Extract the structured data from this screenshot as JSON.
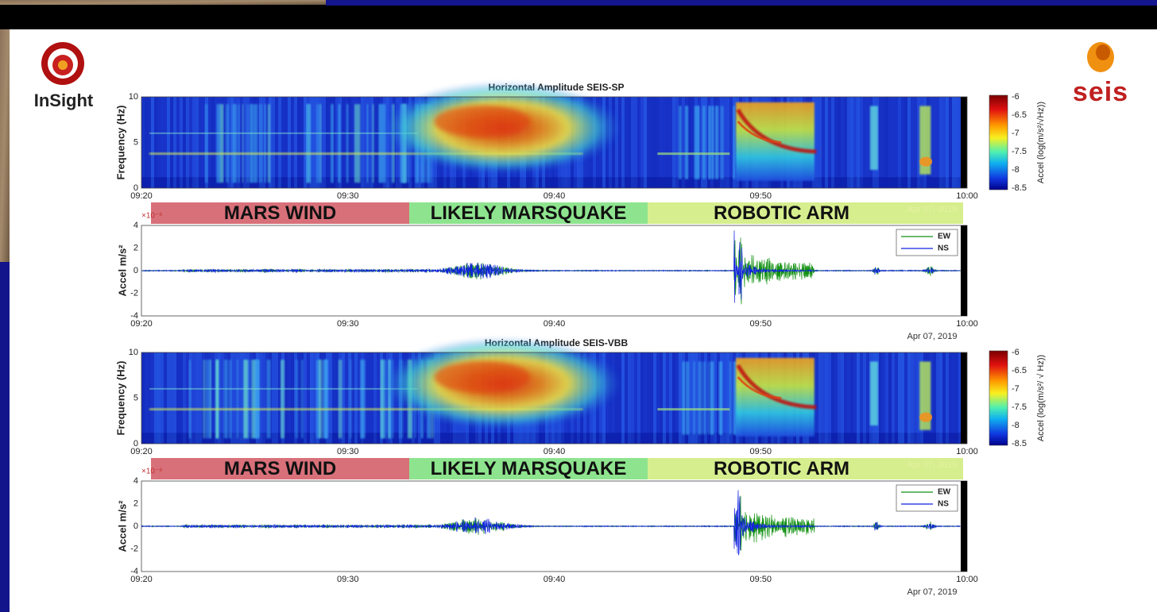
{
  "logos": {
    "left": "InSight",
    "right": "seis"
  },
  "panels": [
    {
      "spectrogram": {
        "title": "Horizontal Amplitude SEIS-SP",
        "ylabel": "Frequency (Hz)",
        "yticks": [
          "0",
          "5",
          "10"
        ],
        "xticks": [
          "09:20",
          "09:30",
          "09:40",
          "09:50",
          "10:00"
        ],
        "colorbar": {
          "label": "Accel (log(m/s²/√Hz))",
          "ticks": [
            "-6",
            "-6.5",
            "-7",
            "-7.5",
            "-8",
            "-8.5"
          ]
        }
      },
      "bands": [
        "MARS WIND",
        "LIKELY MARSQUAKE",
        "ROBOTIC ARM"
      ],
      "band_date": "Apr 07, 2019",
      "waveform": {
        "exponent": "×10⁻⁶",
        "ylabel": "Accel m/s²",
        "yticks": [
          "4",
          "2",
          "0",
          "-2",
          "-4"
        ],
        "xticks": [
          "09:20",
          "09:30",
          "09:40",
          "09:50",
          "10:00"
        ],
        "date": "Apr 07, 2019",
        "legend": [
          "EW",
          "NS"
        ]
      }
    },
    {
      "spectrogram": {
        "title": "Horizontal Amplitude SEIS-VBB",
        "ylabel": "Frequency (Hz)",
        "yticks": [
          "0",
          "5",
          "10"
        ],
        "xticks": [
          "09:20",
          "09:30",
          "09:40",
          "09:50",
          "10:00"
        ],
        "colorbar": {
          "label": "Accel (log(m/s²/ √ Hz))",
          "ticks": [
            "-6",
            "-6.5",
            "-7",
            "-7.5",
            "-8",
            "-8.5"
          ]
        }
      },
      "bands": [
        "MARS WIND",
        "LIKELY MARSQUAKE",
        "ROBOTIC ARM"
      ],
      "band_date": "Apr 07, 2019",
      "waveform": {
        "exponent": "×10⁻⁶",
        "ylabel": "Accel m/s²",
        "yticks": [
          "4",
          "2",
          "0",
          "-2",
          "-4"
        ],
        "xticks": [
          "09:20",
          "09:30",
          "09:40",
          "09:50",
          "10:00"
        ],
        "date": "Apr 07, 2019",
        "legend": [
          "EW",
          "NS"
        ]
      }
    }
  ]
}
